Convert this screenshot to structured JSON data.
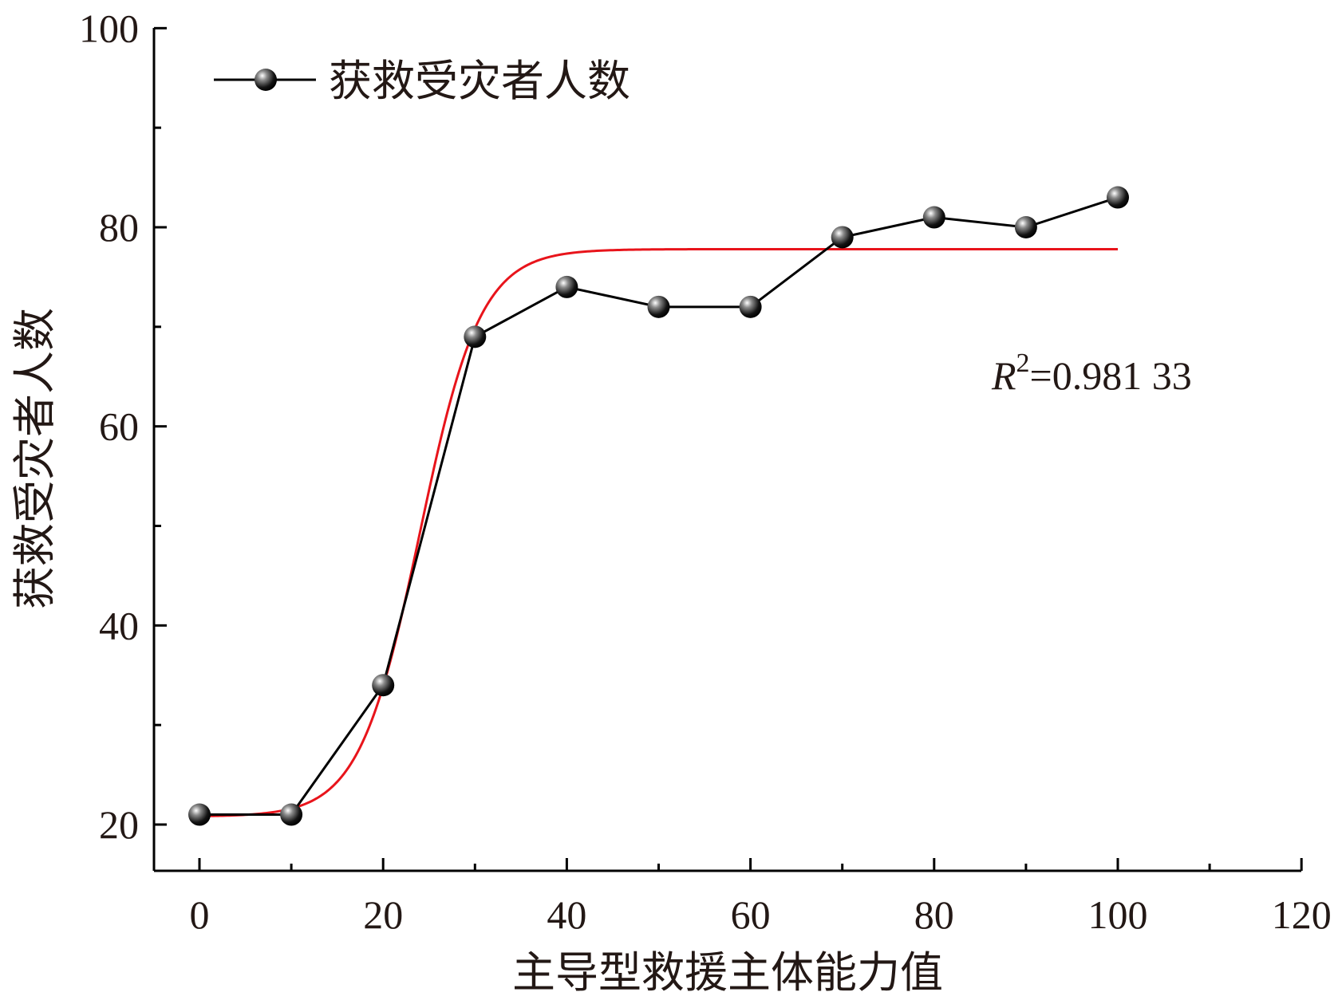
{
  "chart_data": {
    "type": "line",
    "xlabel": "主导型救援主体能力值",
    "ylabel": "获救受灾者人数",
    "xlim": [
      -5,
      120
    ],
    "ylim": [
      17.5,
      100
    ],
    "xticks": [
      "0",
      "20",
      "40",
      "60",
      "80",
      "100",
      "120"
    ],
    "yticks": [
      "20",
      "40",
      "60",
      "80",
      "100"
    ],
    "legend_position": "top-left",
    "series": [
      {
        "name": "获救受灾者人数",
        "style": "line-with-markers",
        "color": "#000000",
        "x": [
          0,
          10,
          20,
          30,
          40,
          50,
          60,
          70,
          80,
          90,
          100
        ],
        "y": [
          21,
          21,
          34,
          69,
          74,
          72,
          72,
          79,
          81,
          80,
          83
        ]
      },
      {
        "style": "fit-curve",
        "color": "#e8141b",
        "x": [
          0,
          100
        ],
        "fit": {
          "A1": 20.8,
          "A2": 77.8,
          "x0": 24.0,
          "dx": 3.3
        }
      }
    ],
    "annotation": {
      "prefix": "R",
      "superscript": "2",
      "text": "=0.981 33"
    },
    "colors": {
      "axis": "#000000",
      "fit": "#e8141b",
      "marker": "#000000"
    }
  }
}
